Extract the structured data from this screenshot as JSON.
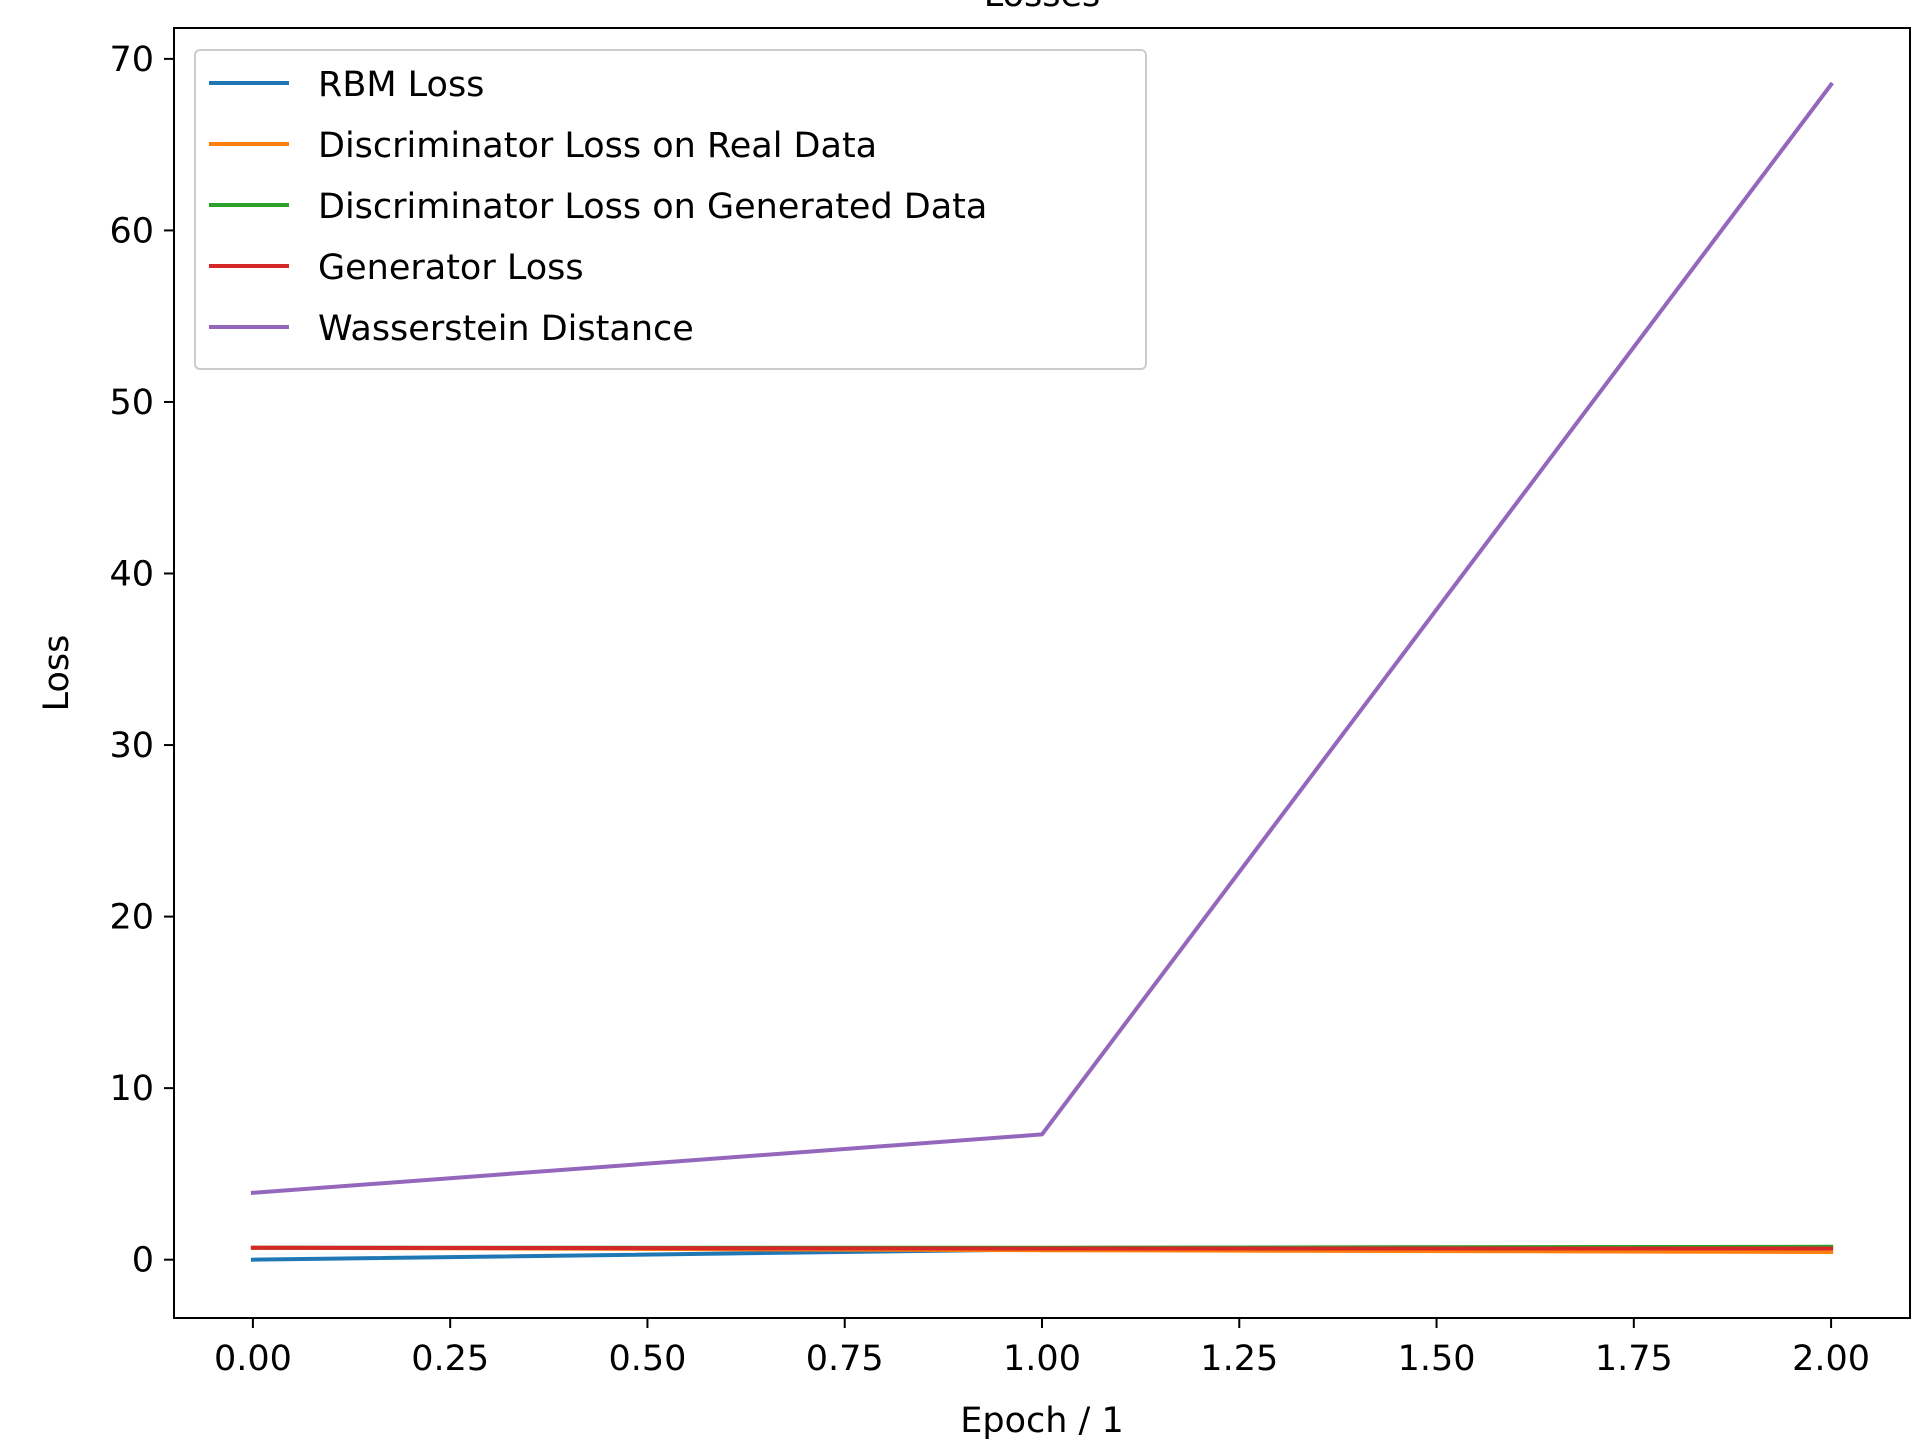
{
  "chart_data": {
    "type": "line",
    "title": "Losses",
    "xlabel": "Epoch / 1",
    "ylabel": "Loss",
    "xlim": [
      -0.1,
      2.1
    ],
    "ylim": [
      -3.4,
      71.8
    ],
    "x": [
      0,
      1,
      2
    ],
    "xticks": [
      0,
      0.25,
      0.5,
      0.75,
      1,
      1.25,
      1.5,
      1.75,
      2
    ],
    "xtick_labels": [
      "0.00",
      "0.25",
      "0.50",
      "0.75",
      "1.00",
      "1.25",
      "1.50",
      "1.75",
      "2.00"
    ],
    "yticks": [
      0,
      10,
      20,
      30,
      40,
      50,
      60,
      70
    ],
    "ytick_labels": [
      "0",
      "10",
      "20",
      "30",
      "40",
      "50",
      "60",
      "70"
    ],
    "grid": false,
    "legend_position": "top-left",
    "series": [
      {
        "name": "RBM Loss",
        "color": "#1f77b4",
        "values": [
          0.0,
          0.6,
          0.7
        ]
      },
      {
        "name": "Discriminator Loss on Real Data",
        "color": "#ff7f0e",
        "values": [
          0.7,
          0.55,
          0.45
        ]
      },
      {
        "name": "Discriminator Loss on Generated Data",
        "color": "#2ca02c",
        "values": [
          0.7,
          0.7,
          0.75
        ]
      },
      {
        "name": "Generator Loss",
        "color": "#d62728",
        "values": [
          0.7,
          0.65,
          0.65
        ]
      },
      {
        "name": "Wasserstein Distance",
        "color": "#9467bd",
        "values": [
          3.9,
          7.3,
          68.5
        ]
      }
    ]
  }
}
